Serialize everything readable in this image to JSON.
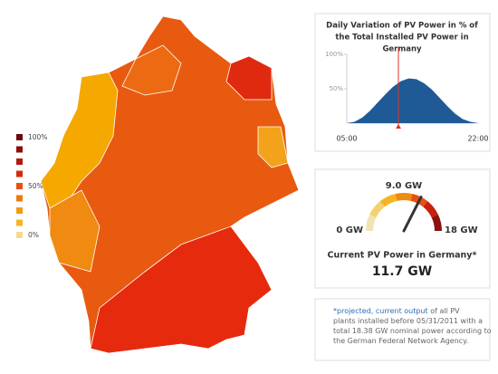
{
  "map_legend": {
    "colors": [
      "#6b0a0a",
      "#8c1010",
      "#b01a10",
      "#d42a10",
      "#e65010",
      "#ee7a10",
      "#f39a12",
      "#f4b520",
      "#f8d890"
    ],
    "labels": [
      "100%",
      "50%",
      "0%"
    ]
  },
  "chart_data": {
    "type": "area",
    "title_lines": [
      "Daily Variation of PV Power in % of",
      "the Total Installed PV Power in",
      "Germany"
    ],
    "categories": [
      "05:00",
      null,
      null,
      null,
      null,
      null,
      null,
      null,
      null,
      null,
      null,
      null,
      null,
      null,
      null,
      null,
      null,
      "22:00"
    ],
    "values": [
      0,
      2,
      8,
      18,
      30,
      42,
      53,
      61,
      65,
      64,
      58,
      49,
      37,
      25,
      14,
      6,
      2,
      0
    ],
    "color": "#1f5a96",
    "ylim": [
      0,
      100
    ],
    "yticks": [
      {
        "value": 50,
        "label": "50%"
      },
      {
        "value": 100,
        "label": "100%"
      }
    ]
  },
  "gauge": {
    "min": {
      "value": 0,
      "label": "0 GW"
    },
    "mid": {
      "value": 9,
      "label": "9.0 GW"
    },
    "max": {
      "value": 18,
      "label": "18 GW"
    },
    "value": 11.7,
    "value_label": "11.7 GW",
    "title": "Current PV Power in Germany*"
  },
  "note": {
    "link": "*projected, current output",
    "text": " of all PV plants installed before 05/31/2011 with a total 18.38 GW nominal power according to the German Federal Network Agency."
  }
}
